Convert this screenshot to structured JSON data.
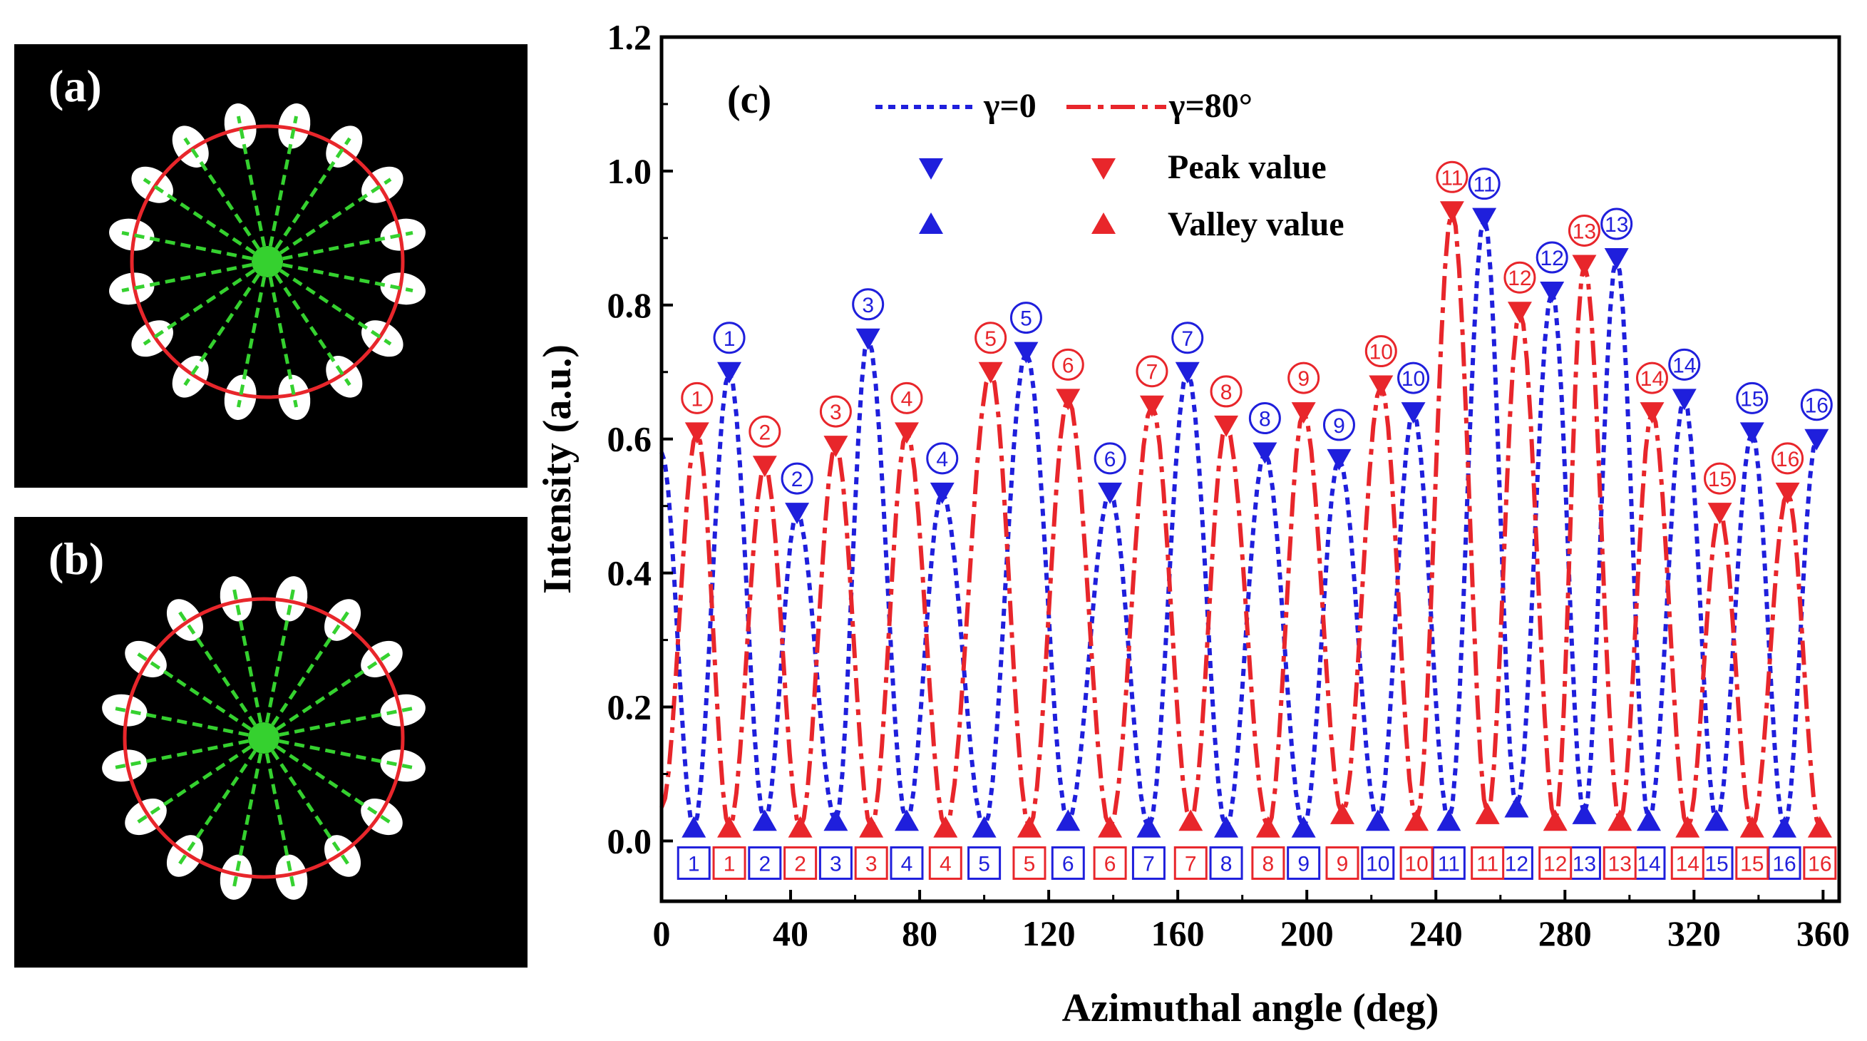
{
  "panels": {
    "a": {
      "label": "(a)",
      "lobe_count": 16
    },
    "b": {
      "label": "(b)",
      "lobe_count": 16
    },
    "colors": {
      "ring": "#e8262b",
      "spokes": "#35d12f",
      "lobes": "#ffffff",
      "background": "#000000"
    }
  },
  "chart_data": {
    "type": "line",
    "panel_label": "(c)",
    "xlabel": "Azimuthal angle (deg)",
    "ylabel": "Intensity (a.u.)",
    "xlim": [
      0,
      365
    ],
    "ylim": [
      -0.09,
      1.2
    ],
    "xticks": [
      0,
      40,
      80,
      120,
      160,
      200,
      240,
      280,
      320,
      360
    ],
    "yticks": [
      "0.0",
      "0.2",
      "0.4",
      "0.6",
      "0.8",
      "1.0",
      "1.2"
    ],
    "legend": {
      "placement": "top-center",
      "gamma0": "γ=0",
      "gamma80": "γ=80°",
      "peak": "Peak value",
      "valley": "Valley value"
    },
    "series": [
      {
        "name": "γ=0",
        "color": "#1f1fdc",
        "style": "dotted",
        "peaks_x": [
          21,
          42,
          64,
          87,
          113,
          139,
          163,
          187,
          210,
          233,
          255,
          276,
          296,
          317,
          338,
          358
        ],
        "peaks_y": [
          0.7,
          0.49,
          0.75,
          0.52,
          0.73,
          0.52,
          0.7,
          0.58,
          0.57,
          0.64,
          0.93,
          0.82,
          0.87,
          0.66,
          0.61,
          0.6
        ],
        "valleys_x": [
          10,
          32,
          54,
          76,
          100,
          126,
          151,
          175,
          199,
          222,
          244,
          265,
          286,
          306,
          327,
          348
        ],
        "valleys_y": [
          0.02,
          0.03,
          0.03,
          0.03,
          0.02,
          0.03,
          0.02,
          0.02,
          0.02,
          0.03,
          0.03,
          0.05,
          0.04,
          0.03,
          0.03,
          0.02
        ]
      },
      {
        "name": "γ=80°",
        "color": "#e8262b",
        "style": "dashdot",
        "peaks_x": [
          11,
          32,
          54,
          76,
          102,
          126,
          152,
          175,
          199,
          223,
          245,
          266,
          286,
          307,
          328,
          349
        ],
        "peaks_y": [
          0.61,
          0.56,
          0.59,
          0.61,
          0.7,
          0.66,
          0.65,
          0.62,
          0.64,
          0.68,
          0.94,
          0.79,
          0.86,
          0.64,
          0.49,
          0.52
        ],
        "valleys_x": [
          21,
          43,
          65,
          88,
          114,
          139,
          164,
          188,
          211,
          234,
          256,
          277,
          297,
          318,
          338,
          359
        ],
        "valleys_y": [
          0.02,
          0.02,
          0.02,
          0.02,
          0.02,
          0.02,
          0.03,
          0.02,
          0.04,
          0.03,
          0.04,
          0.03,
          0.03,
          0.02,
          0.02,
          0.02
        ]
      }
    ],
    "index_labels": [
      "1",
      "2",
      "3",
      "4",
      "5",
      "6",
      "7",
      "8",
      "9",
      "10",
      "11",
      "12",
      "13",
      "14",
      "15",
      "16"
    ]
  }
}
